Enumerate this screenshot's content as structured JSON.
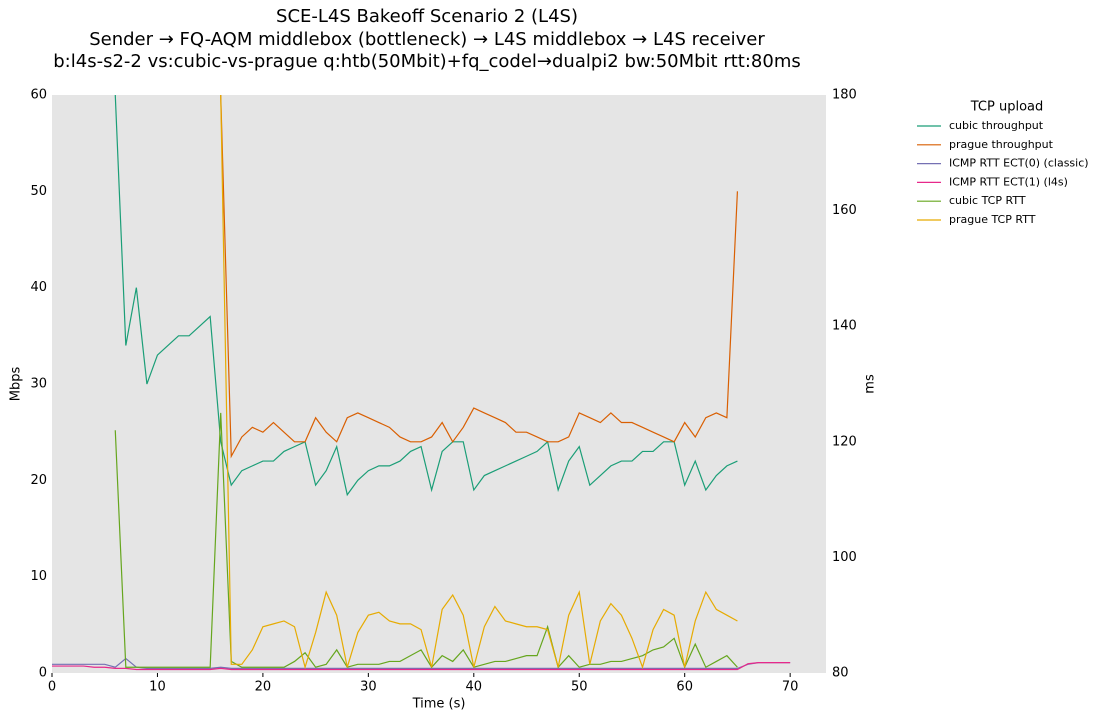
{
  "chart_data": {
    "type": "line",
    "title": [
      "SCE-L4S Bakeoff Scenario 2 (L4S)",
      "Sender → FQ-AQM middlebox (bottleneck) → L4S middlebox → L4S receiver",
      "b:l4s-s2-2 vs:cubic-vs-prague q:htb(50Mbit)+fq_codel→dualpi2 bw:50Mbit rtt:80ms"
    ],
    "xlabel": "Time (s)",
    "ylabel": "Mbps",
    "y2label": "ms",
    "xlim": [
      0,
      73.4
    ],
    "xticks": [
      0,
      10,
      20,
      30,
      40,
      50,
      60,
      70
    ],
    "ylim": [
      0,
      60
    ],
    "yticks": [
      0,
      10,
      20,
      30,
      40,
      50,
      60
    ],
    "y2lim": [
      80,
      180
    ],
    "y2ticks": [
      80,
      100,
      120,
      140,
      160,
      180
    ],
    "grid": false,
    "background": "#e5e5e5",
    "legend_title": "TCP upload",
    "legend_position": "right",
    "x": [
      0,
      1,
      2,
      3,
      4,
      5,
      6,
      7,
      8,
      9,
      10,
      11,
      12,
      13,
      14,
      15,
      16,
      17,
      18,
      19,
      20,
      21,
      22,
      23,
      24,
      25,
      26,
      27,
      28,
      29,
      30,
      31,
      32,
      33,
      34,
      35,
      36,
      37,
      38,
      39,
      40,
      41,
      42,
      43,
      44,
      45,
      46,
      47,
      48,
      49,
      50,
      51,
      52,
      53,
      54,
      55,
      56,
      57,
      58,
      59,
      60,
      61,
      62,
      63,
      64,
      65,
      66,
      67,
      68,
      69,
      70
    ],
    "series": [
      {
        "name": "cubic throughput",
        "color": "#1b9e77",
        "values": [
          null,
          null,
          null,
          null,
          null,
          null,
          60,
          34,
          40,
          30,
          33,
          34,
          35,
          35,
          36,
          37,
          24,
          19.5,
          21,
          21.5,
          22,
          22,
          23,
          23.5,
          24,
          19.5,
          21,
          23.5,
          18.5,
          20,
          21,
          21.5,
          21.5,
          22,
          23,
          23.5,
          19,
          23,
          24,
          24,
          19,
          20.5,
          21,
          21.5,
          22,
          22.5,
          23,
          24,
          19,
          22,
          23.5,
          19.5,
          20.5,
          21.5,
          22,
          22,
          23,
          23,
          24,
          24,
          19.5,
          22,
          19,
          20.5,
          21.5,
          22,
          null,
          null,
          null,
          null,
          null
        ]
      },
      {
        "name": "prague throughput",
        "color": "#d95f02",
        "values": [
          null,
          null,
          null,
          null,
          null,
          null,
          null,
          null,
          null,
          null,
          null,
          null,
          null,
          null,
          null,
          null,
          60,
          22.5,
          24.5,
          25.5,
          25,
          26,
          25,
          24,
          24,
          26.5,
          25,
          24,
          26.5,
          27,
          26.5,
          26,
          25.5,
          24.5,
          24,
          24,
          24.5,
          26,
          24,
          25.5,
          27.5,
          27,
          26.5,
          26,
          25,
          25,
          24.5,
          24,
          24,
          24.5,
          27,
          26.5,
          26,
          27,
          26,
          26,
          25.5,
          25,
          24.5,
          24,
          26,
          24.5,
          26.5,
          27,
          26.5,
          50,
          null,
          null,
          null,
          null,
          null
        ]
      },
      {
        "name": "ICMP RTT ECT(0) (classic)",
        "color": "#7570b3",
        "axis": "y2",
        "values": [
          81.5,
          81.5,
          81.5,
          81.5,
          81.5,
          81.5,
          81,
          82.5,
          81,
          80.8,
          80.8,
          80.8,
          80.8,
          80.8,
          80.8,
          80.8,
          81,
          80.8,
          80.8,
          80.8,
          80.8,
          80.8,
          80.8,
          80.8,
          80.8,
          80.8,
          80.8,
          80.8,
          80.8,
          80.8,
          80.8,
          80.8,
          80.8,
          80.8,
          80.8,
          80.8,
          80.8,
          80.8,
          80.8,
          80.8,
          80.8,
          80.8,
          80.8,
          80.8,
          80.8,
          80.8,
          80.8,
          80.8,
          80.8,
          80.8,
          80.8,
          80.8,
          80.8,
          80.8,
          80.8,
          80.8,
          80.8,
          80.8,
          80.8,
          80.8,
          80.8,
          80.8,
          80.8,
          80.8,
          80.8,
          80.8,
          81.5,
          81.8,
          81.8,
          81.8,
          81.8
        ]
      },
      {
        "name": "ICMP RTT ECT(1) (l4s)",
        "color": "#e7298a",
        "axis": "y2",
        "values": [
          81.2,
          81.2,
          81.2,
          81.2,
          81,
          81,
          80.8,
          80.8,
          80.6,
          80.6,
          80.6,
          80.6,
          80.6,
          80.6,
          80.6,
          80.6,
          80.8,
          80.6,
          80.6,
          80.6,
          80.6,
          80.6,
          80.6,
          80.6,
          80.6,
          80.6,
          80.6,
          80.6,
          80.6,
          80.6,
          80.6,
          80.6,
          80.6,
          80.6,
          80.6,
          80.6,
          80.6,
          80.6,
          80.6,
          80.6,
          80.6,
          80.6,
          80.6,
          80.6,
          80.6,
          80.6,
          80.6,
          80.6,
          80.6,
          80.6,
          80.6,
          80.6,
          80.6,
          80.6,
          80.6,
          80.6,
          80.6,
          80.6,
          80.6,
          80.6,
          80.6,
          80.6,
          80.6,
          80.6,
          80.6,
          80.6,
          81.6,
          81.8,
          81.8,
          81.8,
          81.8
        ]
      },
      {
        "name": "cubic TCP RTT",
        "color": "#66a61e",
        "axis": "y2",
        "values": [
          null,
          null,
          null,
          null,
          null,
          null,
          122,
          81,
          81,
          81,
          81,
          81,
          81,
          81,
          81,
          81,
          125,
          82,
          81,
          81,
          81,
          81,
          81,
          82,
          83.5,
          81,
          81.5,
          84,
          81,
          81.5,
          81.5,
          81.5,
          82,
          82,
          83,
          84,
          81,
          83,
          82,
          84,
          81,
          81.5,
          82,
          82,
          82.5,
          83,
          83,
          88,
          81,
          83,
          81,
          81.5,
          81.5,
          82,
          82,
          82.5,
          83,
          84,
          84.5,
          86,
          81,
          85,
          81,
          82,
          83,
          81,
          null,
          null,
          null,
          null,
          null
        ]
      },
      {
        "name": "prague TCP RTT",
        "color": "#e6ab02",
        "axis": "y2",
        "values": [
          null,
          null,
          null,
          null,
          null,
          null,
          null,
          null,
          null,
          null,
          null,
          null,
          null,
          null,
          null,
          null,
          180,
          81.5,
          81.5,
          84,
          88,
          88.5,
          89,
          88,
          81,
          87,
          94,
          90,
          81,
          87,
          90,
          90.5,
          89,
          88.5,
          88.5,
          87.5,
          81,
          91,
          93.5,
          90,
          81,
          88,
          91.5,
          89,
          88.5,
          88,
          88,
          87.5,
          81,
          90,
          94,
          81.5,
          89,
          92,
          90,
          86,
          81,
          87.5,
          91,
          90,
          81,
          89,
          94,
          91,
          90,
          89,
          null,
          null,
          null,
          null,
          null
        ]
      }
    ]
  }
}
